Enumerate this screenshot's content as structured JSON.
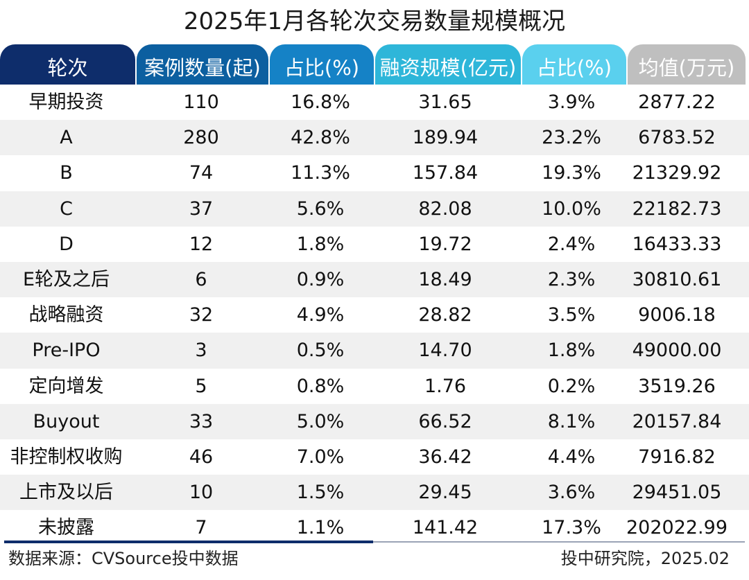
{
  "title": "2025年1月各轮次交易数量规模概况",
  "header_colors": [
    "#0e2d6b",
    "#0c5fa0",
    "#1582c6",
    "#2eb6d9",
    "#5ad0ee",
    "#bfbfbf"
  ],
  "chart_data": {
    "type": "table",
    "columns": [
      "轮次",
      "案例数量(起)",
      "占比(%)",
      "融资规模(亿元)",
      "占比(%)",
      "均值(万元)"
    ],
    "rows": [
      [
        "早期投资",
        "110",
        "16.8%",
        "31.65",
        "3.9%",
        "2877.22"
      ],
      [
        "A",
        "280",
        "42.8%",
        "189.94",
        "23.2%",
        "6783.52"
      ],
      [
        "B",
        "74",
        "11.3%",
        "157.84",
        "19.3%",
        "21329.92"
      ],
      [
        "C",
        "37",
        "5.6%",
        "82.08",
        "10.0%",
        "22182.73"
      ],
      [
        "D",
        "12",
        "1.8%",
        "19.72",
        "2.4%",
        "16433.33"
      ],
      [
        "E轮及之后",
        "6",
        "0.9%",
        "18.49",
        "2.3%",
        "30810.61"
      ],
      [
        "战略融资",
        "32",
        "4.9%",
        "28.82",
        "3.5%",
        "9006.18"
      ],
      [
        "Pre-IPO",
        "3",
        "0.5%",
        "14.70",
        "1.8%",
        "49000.00"
      ],
      [
        "定向增发",
        "5",
        "0.8%",
        "1.76",
        "0.2%",
        "3519.26"
      ],
      [
        "Buyout",
        "33",
        "5.0%",
        "66.52",
        "8.1%",
        "20157.84"
      ],
      [
        "非控制权收购",
        "46",
        "7.0%",
        "36.42",
        "4.4%",
        "7916.82"
      ],
      [
        "上市及以后",
        "10",
        "1.5%",
        "29.45",
        "3.6%",
        "29451.05"
      ],
      [
        "未披露",
        "7",
        "1.1%",
        "141.42",
        "17.3%",
        "202022.99"
      ]
    ]
  },
  "footer": {
    "source": "数据来源：CVSource投中数据",
    "credit": "投中研究院，2025.02"
  }
}
